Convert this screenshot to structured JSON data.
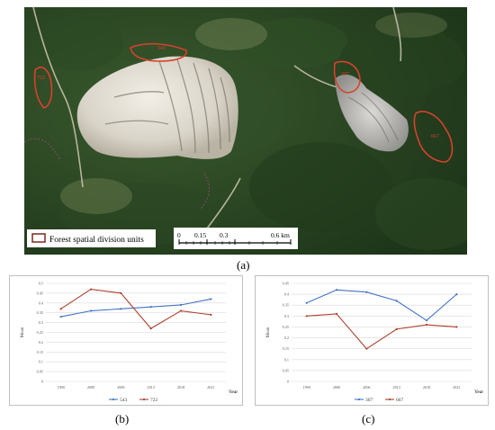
{
  "map": {
    "legend_label": "Forest spatial division units",
    "scale_ticks": [
      "0",
      "0.15",
      "0.3",
      "0.6 km"
    ],
    "region_labels": [
      "543",
      "722",
      "307",
      "667"
    ],
    "colors": {
      "boundary": "#d8412b",
      "legend_border": "#7a2a20"
    }
  },
  "captions": {
    "a": "(a)",
    "b": "(b)",
    "c": "(c)"
  },
  "chart_data": [
    {
      "type": "line",
      "categories": [
        "1990",
        "2000",
        "2006",
        "2013",
        "2018",
        "2021"
      ],
      "series": [
        {
          "name": "543",
          "color": "#4472c4",
          "values": [
            0.33,
            0.36,
            0.37,
            0.38,
            0.39,
            0.42
          ]
        },
        {
          "name": "722",
          "color": "#a9422f",
          "values": [
            0.37,
            0.47,
            0.45,
            0.27,
            0.36,
            0.34
          ]
        }
      ],
      "ylabel": "Mean",
      "xlabel": "Year",
      "yticks": [
        "0",
        "0.05",
        "0.1",
        "0.15",
        "0.2",
        "0.25",
        "0.3",
        "0.35",
        "0.4",
        "0.45",
        "0.5"
      ],
      "ylim": [
        0,
        0.5
      ],
      "legend_position": "bottom",
      "grid": true
    },
    {
      "type": "line",
      "categories": [
        "1990",
        "2000",
        "2006",
        "2013",
        "2018",
        "2021"
      ],
      "series": [
        {
          "name": "307",
          "color": "#4472c4",
          "values": [
            0.36,
            0.42,
            0.41,
            0.37,
            0.28,
            0.4
          ]
        },
        {
          "name": "667",
          "color": "#a9422f",
          "values": [
            0.3,
            0.31,
            0.15,
            0.24,
            0.26,
            0.25
          ]
        }
      ],
      "ylabel": "Mean",
      "xlabel": "Year",
      "yticks": [
        "0",
        "0.05",
        "0.1",
        "0.15",
        "0.2",
        "0.25",
        "0.3",
        "0.35",
        "0.4",
        "0.45"
      ],
      "ylim": [
        0,
        0.45
      ],
      "legend_position": "bottom",
      "grid": true
    }
  ]
}
